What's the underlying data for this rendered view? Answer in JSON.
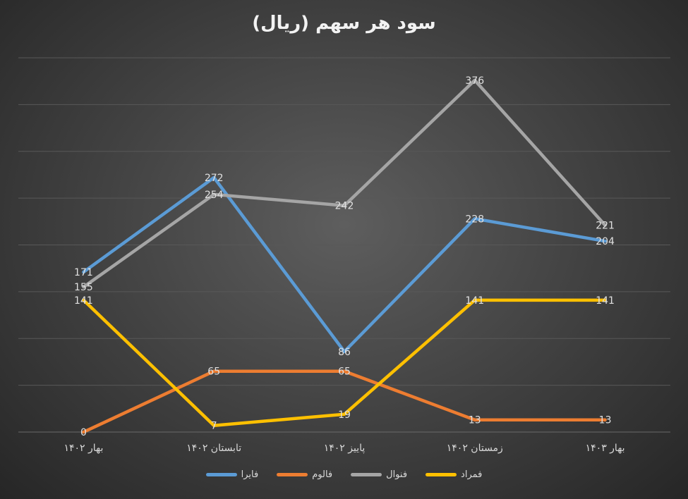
{
  "chart_data": {
    "type": "line",
    "title": "سود هر سهم (ریال)",
    "xlabel": "",
    "ylabel": "",
    "categories": [
      "بهار ۱۴۰۲",
      "تابستان ۱۴۰۲",
      "پاییز ۱۴۰۲",
      "زمستان ۱۴۰۲",
      "بهار ۱۴۰۳"
    ],
    "ylim": [
      0,
      400
    ],
    "ytick_step": 50,
    "grid": true,
    "show_y_tick_labels": false,
    "legend_position": "bottom",
    "series": [
      {
        "name": "فایرا",
        "color": "#5b9bd5",
        "values": [
          171,
          272,
          86,
          228,
          204
        ]
      },
      {
        "name": "فالوم",
        "color": "#ed7d31",
        "values": [
          0,
          65,
          65,
          13,
          13
        ]
      },
      {
        "name": "فنوال",
        "color": "#a5a5a5",
        "values": [
          155,
          254,
          242,
          376,
          221
        ]
      },
      {
        "name": "فمراد",
        "color": "#ffc000",
        "values": [
          141,
          7,
          19,
          141,
          141
        ]
      }
    ]
  }
}
